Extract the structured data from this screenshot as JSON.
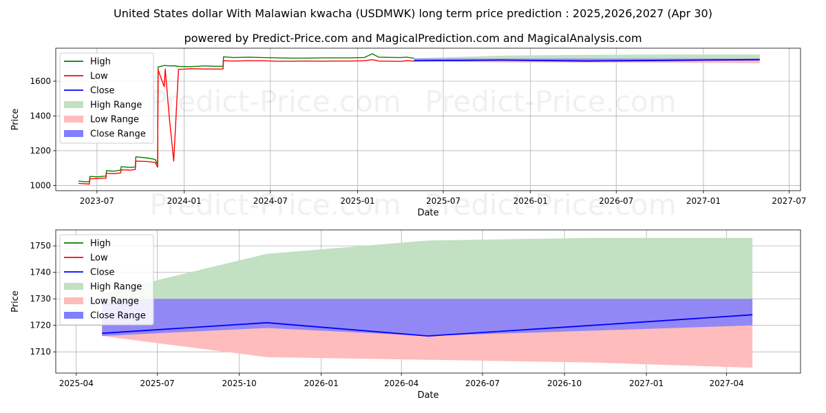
{
  "title": "United States dollar With Malawian kwacha (USDMWK) long term price prediction : 2025,2026,2027 (Apr 30)",
  "subtitle": "powered by Predict-Price.com and MagicalPrediction.com and MagicalAnalysis.com",
  "watermark": "Predict-Price.com",
  "colors": {
    "high": "#008000",
    "low": "#ff0000",
    "close": "#0000ff",
    "high_range": "#c2e0c2",
    "low_range": "#ffbcbc",
    "close_range": "#7f7fff",
    "grid": "#b0b0b0"
  },
  "chart_data": [
    {
      "type": "line",
      "xlabel": "Date",
      "ylabel": "Price",
      "xlim": [
        "2023-04-05",
        "2027-07-25"
      ],
      "ylim": [
        970,
        1790
      ],
      "x_ticks": [
        {
          "date": "2023-07-01",
          "label": "2023-07"
        },
        {
          "date": "2024-01-01",
          "label": "2024-01"
        },
        {
          "date": "2024-07-01",
          "label": "2024-07"
        },
        {
          "date": "2025-01-01",
          "label": "2025-01"
        },
        {
          "date": "2025-07-01",
          "label": "2025-07"
        },
        {
          "date": "2026-01-01",
          "label": "2026-01"
        },
        {
          "date": "2026-07-01",
          "label": "2026-07"
        },
        {
          "date": "2027-01-01",
          "label": "2027-01"
        },
        {
          "date": "2027-07-01",
          "label": "2027-07"
        }
      ],
      "y_ticks": [
        1000,
        1200,
        1400,
        1600
      ],
      "legend": [
        "High",
        "Low",
        "Close",
        "High Range",
        "Low Range",
        "Close Range"
      ],
      "legend_position": "top-left",
      "history": {
        "dates": [
          "2023-05-23",
          "2023-06-05",
          "2023-06-15",
          "2023-06-16",
          "2023-07-01",
          "2023-07-20",
          "2023-07-21",
          "2023-08-05",
          "2023-08-20",
          "2023-08-21",
          "2023-09-10",
          "2023-09-20",
          "2023-09-21",
          "2023-10-15",
          "2023-11-01",
          "2023-11-06",
          "2023-11-07",
          "2023-11-20",
          "2023-11-22",
          "2023-12-01",
          "2023-12-10",
          "2023-12-20",
          "2024-01-15",
          "2024-02-15",
          "2024-03-05",
          "2024-03-23",
          "2024-03-24",
          "2024-04-15",
          "2024-05-15",
          "2024-06-15",
          "2024-07-15",
          "2024-08-15",
          "2024-09-15",
          "2024-10-15",
          "2024-11-15",
          "2024-12-15",
          "2025-01-15",
          "2025-02-01",
          "2025-02-15",
          "2025-03-15",
          "2025-04-01",
          "2025-04-15",
          "2025-04-30"
        ],
        "high": [
          1025,
          1022,
          1022,
          1052,
          1050,
          1054,
          1085,
          1082,
          1088,
          1108,
          1104,
          1106,
          1165,
          1158,
          1150,
          1120,
          1682,
          1690,
          1690,
          1688,
          1689,
          1685,
          1684,
          1688,
          1686,
          1686,
          1740,
          1736,
          1738,
          1736,
          1734,
          1733,
          1733,
          1734,
          1734,
          1734,
          1736,
          1758,
          1738,
          1737,
          1736,
          1738,
          1732
        ],
        "low": [
          1012,
          1010,
          1008,
          1038,
          1040,
          1042,
          1070,
          1068,
          1072,
          1090,
          1088,
          1092,
          1140,
          1138,
          1132,
          1105,
          1665,
          1568,
          1670,
          1382,
          1140,
          1668,
          1672,
          1670,
          1670,
          1670,
          1718,
          1716,
          1718,
          1718,
          1715,
          1715,
          1716,
          1715,
          1716,
          1716,
          1718,
          1724,
          1716,
          1715,
          1714,
          1718,
          1716
        ]
      },
      "forecast": {
        "dates": [
          "2025-04-30",
          "2025-11-01",
          "2026-05-01",
          "2026-11-01",
          "2027-04-30"
        ],
        "close": [
          1717,
          1721,
          1716,
          1720,
          1724
        ],
        "high_range": [
          1732,
          1747,
          1752,
          1753,
          1753
        ],
        "low_range": [
          1716,
          1708,
          1707,
          1706,
          1704
        ],
        "close_range_upper": [
          1730,
          1730,
          1730,
          1730,
          1730
        ],
        "close_range_lower": [
          1716,
          1719,
          1716,
          1718,
          1720
        ]
      }
    },
    {
      "type": "line",
      "xlabel": "Date",
      "ylabel": "Price",
      "xlim": [
        "2025-03-09",
        "2027-06-23"
      ],
      "ylim": [
        1702,
        1756
      ],
      "x_ticks": [
        {
          "date": "2025-04-01",
          "label": "2025-04"
        },
        {
          "date": "2025-07-01",
          "label": "2025-07"
        },
        {
          "date": "2025-10-01",
          "label": "2025-10"
        },
        {
          "date": "2026-01-01",
          "label": "2026-01"
        },
        {
          "date": "2026-04-01",
          "label": "2026-04"
        },
        {
          "date": "2026-07-01",
          "label": "2026-07"
        },
        {
          "date": "2026-10-01",
          "label": "2026-10"
        },
        {
          "date": "2027-01-01",
          "label": "2027-01"
        },
        {
          "date": "2027-04-01",
          "label": "2027-04"
        }
      ],
      "y_ticks": [
        1710,
        1720,
        1730,
        1740,
        1750
      ],
      "legend": [
        "High",
        "Low",
        "Close",
        "High Range",
        "Low Range",
        "Close Range"
      ],
      "legend_position": "top-left",
      "forecast": {
        "dates": [
          "2025-04-30",
          "2025-11-01",
          "2026-05-01",
          "2026-11-01",
          "2027-04-30"
        ],
        "close": [
          1717,
          1721,
          1716,
          1720,
          1724
        ],
        "high_range": [
          1732,
          1747,
          1752,
          1753,
          1753
        ],
        "low_range": [
          1716,
          1708,
          1707,
          1706,
          1704
        ],
        "close_range_upper": [
          1730,
          1730,
          1730,
          1730,
          1730
        ],
        "close_range_lower": [
          1716,
          1719,
          1716,
          1718,
          1720
        ]
      }
    }
  ]
}
